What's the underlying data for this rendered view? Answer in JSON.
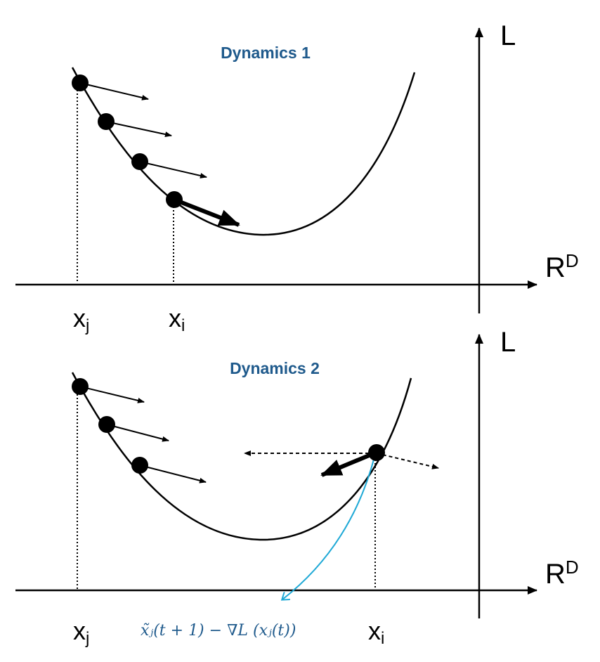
{
  "colors": {
    "title": "#1f5a8c",
    "formula": "#1f5a8c",
    "curve": "#000000",
    "gradient_path": "#1fa9d6"
  },
  "panel1": {
    "title": "Dynamics 1",
    "y_axis_label": "L",
    "x_axis_label_base": "R",
    "x_axis_label_sup": "D",
    "x_j_base": "x",
    "x_j_sub": "j",
    "x_i_base": "x",
    "x_i_sub": "i"
  },
  "panel2": {
    "title": "Dynamics 2",
    "y_axis_label": "L",
    "x_axis_label_base": "R",
    "x_axis_label_sup": "D",
    "x_j_base": "x",
    "x_j_sub": "j",
    "x_i_base": "x",
    "x_i_sub": "i",
    "formula": "x̃ⱼ(t + 1) − ∇L (xⱼ(t))"
  }
}
